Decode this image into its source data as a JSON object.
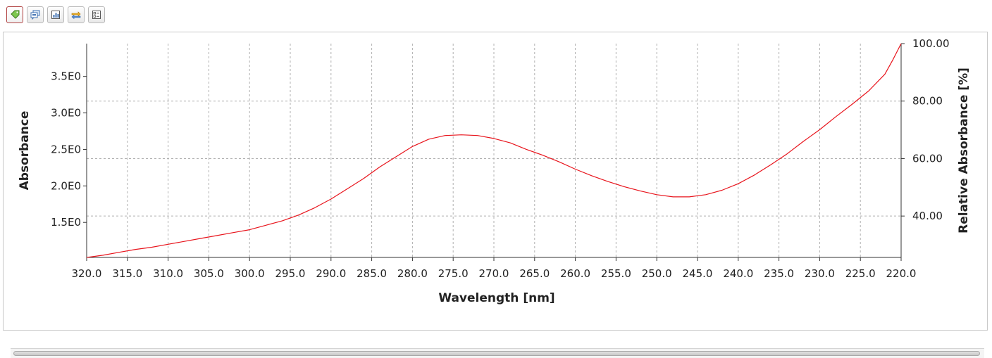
{
  "toolbar": {
    "buttons": [
      {
        "icon": "tag-icon",
        "active": true
      },
      {
        "icon": "comment-icon",
        "active": false
      },
      {
        "icon": "chart-settings-icon",
        "active": false
      },
      {
        "icon": "arrows-icon",
        "active": false
      },
      {
        "icon": "list-options-icon",
        "active": false
      }
    ]
  },
  "chart_data": {
    "type": "line",
    "title": "",
    "xlabel": "Wavelength [nm]",
    "ylabel": "Absorbance",
    "ylabel_right": "Relative Absorbance [%]",
    "x_reversed": true,
    "xlim": [
      320.0,
      220.0
    ],
    "ylim": [
      1.02,
      3.95
    ],
    "ylim_right": [
      25.6,
      100.0
    ],
    "x_ticks": [
      "320.0",
      "315.0",
      "310.0",
      "305.0",
      "300.0",
      "295.0",
      "290.0",
      "285.0",
      "280.0",
      "275.0",
      "270.0",
      "265.0",
      "260.0",
      "255.0",
      "250.0",
      "245.0",
      "240.0",
      "235.0",
      "230.0",
      "225.0",
      "220.0"
    ],
    "y_ticks": [
      {
        "value": 1.5,
        "label": "1.5E0"
      },
      {
        "value": 2.0,
        "label": "2.0E0"
      },
      {
        "value": 2.5,
        "label": "2.5E0"
      },
      {
        "value": 3.0,
        "label": "3.0E0"
      },
      {
        "value": 3.5,
        "label": "3.5E0"
      }
    ],
    "y_ticks_right": [
      {
        "value": 40.0,
        "label": "40.00"
      },
      {
        "value": 60.0,
        "label": "60.00"
      },
      {
        "value": 80.0,
        "label": "80.00"
      },
      {
        "value": 100.0,
        "label": "100.00"
      }
    ],
    "grid": true,
    "line_color": "#e8141c",
    "series": [
      {
        "x": [
          320,
          318,
          316,
          314,
          312,
          310,
          308,
          306,
          304,
          302,
          300,
          298,
          296,
          294,
          292,
          290,
          288,
          286,
          284,
          282,
          280,
          278,
          276,
          274,
          272,
          270,
          268,
          266,
          264,
          262,
          260,
          258,
          256,
          254,
          252,
          250,
          248,
          246,
          244,
          242,
          240,
          238,
          236,
          234,
          232,
          230,
          228,
          226,
          224,
          222,
          221,
          220
        ],
        "values": [
          1.02,
          1.05,
          1.09,
          1.13,
          1.16,
          1.2,
          1.24,
          1.28,
          1.32,
          1.36,
          1.4,
          1.46,
          1.52,
          1.6,
          1.7,
          1.82,
          1.96,
          2.1,
          2.26,
          2.4,
          2.54,
          2.64,
          2.69,
          2.7,
          2.69,
          2.65,
          2.59,
          2.5,
          2.42,
          2.33,
          2.23,
          2.14,
          2.06,
          1.99,
          1.93,
          1.88,
          1.85,
          1.85,
          1.88,
          1.94,
          2.03,
          2.15,
          2.29,
          2.44,
          2.61,
          2.77,
          2.95,
          3.12,
          3.3,
          3.53,
          3.73,
          3.95
        ]
      }
    ]
  }
}
